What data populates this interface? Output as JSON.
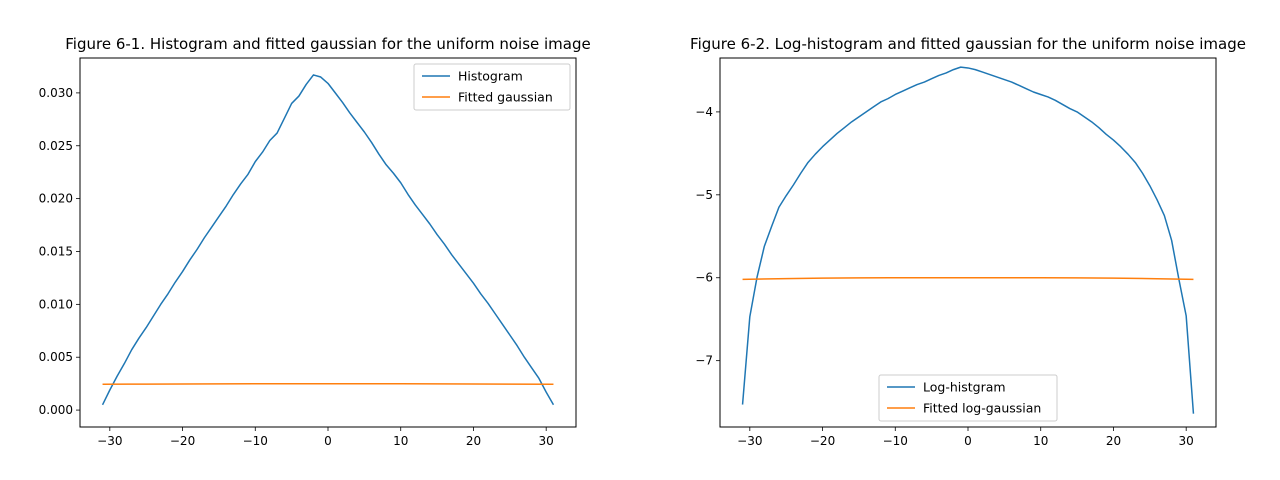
{
  "chart_data": [
    {
      "type": "line",
      "title": "Figure 6-1. Histogram and fitted gaussian for the uniform noise image",
      "xlabel": "",
      "ylabel": "",
      "xlim": [
        -34.1,
        34.1
      ],
      "ylim": [
        -0.0016,
        0.0333
      ],
      "xticks": [
        -30,
        -20,
        -10,
        0,
        10,
        20,
        30
      ],
      "yticks": [
        0.0,
        0.005,
        0.01,
        0.015,
        0.02,
        0.025,
        0.03
      ],
      "ytick_labels": [
        "0.000",
        "0.005",
        "0.010",
        "0.015",
        "0.020",
        "0.025",
        "0.030"
      ],
      "xtick_labels": [
        "−30",
        "−20",
        "−10",
        "0",
        "10",
        "20",
        "30"
      ],
      "legend_position": "upper right",
      "series": [
        {
          "name": "Histogram",
          "color": "#1f77b4",
          "x": [
            -31,
            -30,
            -29,
            -28,
            -27,
            -26,
            -25,
            -24,
            -23,
            -22,
            -21,
            -20,
            -19,
            -18,
            -17,
            -16,
            -15,
            -14,
            -13,
            -12,
            -11,
            -10,
            -9,
            -8,
            -7,
            -6,
            -5,
            -4,
            -3,
            -2,
            -1,
            0,
            1,
            2,
            3,
            4,
            5,
            6,
            7,
            8,
            9,
            10,
            11,
            12,
            13,
            14,
            15,
            16,
            17,
            18,
            19,
            20,
            21,
            22,
            23,
            24,
            25,
            26,
            27,
            28,
            29,
            30,
            31
          ],
          "y": [
            0.0005,
            0.0019,
            0.0032,
            0.0044,
            0.0057,
            0.0068,
            0.0078,
            0.0089,
            0.01,
            0.011,
            0.0121,
            0.0131,
            0.0142,
            0.0152,
            0.0163,
            0.0173,
            0.0183,
            0.0193,
            0.0204,
            0.0214,
            0.0223,
            0.0235,
            0.0244,
            0.0255,
            0.0262,
            0.0276,
            0.029,
            0.0297,
            0.0308,
            0.0317,
            0.0315,
            0.0309,
            0.03,
            0.0291,
            0.0281,
            0.0272,
            0.0263,
            0.0253,
            0.0242,
            0.0232,
            0.0224,
            0.0215,
            0.0204,
            0.0194,
            0.0185,
            0.0176,
            0.0166,
            0.0157,
            0.0147,
            0.0138,
            0.0129,
            0.012,
            0.011,
            0.0101,
            0.0091,
            0.0081,
            0.0071,
            0.0061,
            0.005,
            0.004,
            0.003,
            0.0017,
            0.0005
          ]
        },
        {
          "name": "Fitted gaussian",
          "color": "#ff7f0e",
          "x": [
            -31,
            -25,
            -20,
            -15,
            -10,
            -5,
            0,
            5,
            10,
            15,
            20,
            25,
            31
          ],
          "y": [
            0.00244,
            0.00246,
            0.00247,
            0.00248,
            0.00249,
            0.00249,
            0.00249,
            0.00249,
            0.00249,
            0.00248,
            0.00247,
            0.00246,
            0.00244
          ]
        }
      ]
    },
    {
      "type": "line",
      "title": "Figure 6-2. Log-histogram and fitted gaussian for the uniform noise image",
      "xlabel": "",
      "ylabel": "",
      "xlim": [
        -34.1,
        34.1
      ],
      "ylim": [
        -7.8,
        -3.35
      ],
      "xticks": [
        -30,
        -20,
        -10,
        0,
        10,
        20,
        30
      ],
      "yticks": [
        -7,
        -6,
        -5,
        -4
      ],
      "ytick_labels": [
        "−7",
        "−6",
        "−5",
        "−4"
      ],
      "xtick_labels": [
        "−30",
        "−20",
        "−10",
        "0",
        "10",
        "20",
        "30"
      ],
      "legend_position": "lower center",
      "series": [
        {
          "name": "Log-histgram",
          "color": "#1f77b4",
          "x": [
            -31,
            -30,
            -29,
            -28,
            -27,
            -26,
            -25,
            -24,
            -23,
            -22,
            -21,
            -20,
            -19,
            -18,
            -17,
            -16,
            -15,
            -14,
            -13,
            -12,
            -11,
            -10,
            -9,
            -8,
            -7,
            -6,
            -5,
            -4,
            -3,
            -2,
            -1,
            0,
            1,
            2,
            3,
            4,
            5,
            6,
            7,
            8,
            9,
            10,
            11,
            12,
            13,
            14,
            15,
            16,
            17,
            18,
            19,
            20,
            21,
            22,
            23,
            24,
            25,
            26,
            27,
            28,
            29,
            30
          ],
          "y": [
            -7.53,
            -6.47,
            -5.99,
            -5.62,
            -5.38,
            -5.15,
            -5.01,
            -4.88,
            -4.74,
            -4.61,
            -4.51,
            -4.42,
            -4.34,
            -4.26,
            -4.19,
            -4.12,
            -4.06,
            -4.0,
            -3.94,
            -3.88,
            -3.84,
            -3.79,
            -3.75,
            -3.71,
            -3.67,
            -3.64,
            -3.6,
            -3.56,
            -3.53,
            -3.49,
            -3.46,
            -3.47,
            -3.49,
            -3.52,
            -3.55,
            -3.58,
            -3.61,
            -3.64,
            -3.68,
            -3.72,
            -3.76,
            -3.79,
            -3.82,
            -3.86,
            -3.91,
            -3.96,
            -4.0,
            -4.06,
            -4.12,
            -4.19,
            -4.27,
            -4.34,
            -4.42,
            -4.51,
            -4.61,
            -4.74,
            -4.89,
            -5.06,
            -5.25,
            -5.55,
            -6.02,
            -6.46
          ],
          "x_tail": [
            31
          ],
          "y_tail": [
            -7.64
          ]
        },
        {
          "name": "Fitted log-gaussian",
          "color": "#ff7f0e",
          "x": [
            -31,
            -25,
            -20,
            -15,
            -10,
            -5,
            0,
            5,
            10,
            15,
            20,
            25,
            31
          ],
          "y": [
            -6.02,
            -6.01,
            -6.005,
            -6.002,
            -6.0,
            -6.0,
            -6.0,
            -6.0,
            -6.0,
            -6.002,
            -6.005,
            -6.01,
            -6.02
          ]
        }
      ]
    }
  ]
}
